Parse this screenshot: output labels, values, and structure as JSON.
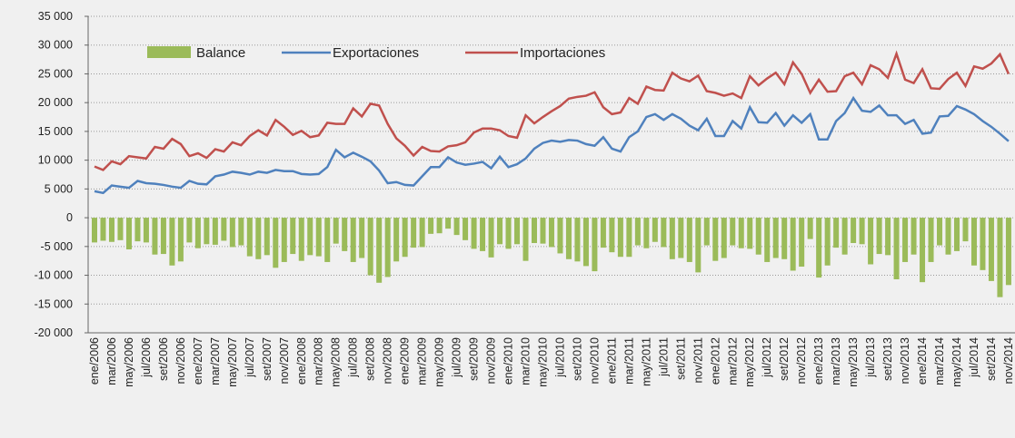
{
  "chart_data": {
    "type": "bar_line",
    "categories": [
      "ene/2006",
      null,
      "mar/2006",
      null,
      "may/2006",
      null,
      "jul/2006",
      null,
      "set/2006",
      null,
      "nov/2006",
      null,
      "ene/2007",
      null,
      "mar/2007",
      null,
      "may/2007",
      null,
      "jul/2007",
      null,
      "set/2007",
      null,
      "nov/2007",
      null,
      "ene/2008",
      null,
      "mar/2008",
      null,
      "may/2008",
      null,
      "jul/2008",
      null,
      "set/2008",
      null,
      "nov/2008",
      null,
      "ene/2009",
      null,
      "mar/2009",
      null,
      "may/2009",
      null,
      "jul/2009",
      null,
      "set/2009",
      null,
      "nov/2009",
      null,
      "ene/2010",
      null,
      "mar/2010",
      null,
      "may/2010",
      null,
      "jul/2010",
      null,
      "set/2010",
      null,
      "nov/2010",
      null,
      "ene/2011",
      null,
      "mar/2011",
      null,
      "may/2011",
      null,
      "jul/2011",
      null,
      "set/2011",
      null,
      "nov/2011",
      null,
      "ene/2012",
      null,
      "mar/2012",
      null,
      "may/2012",
      null,
      "jul/2012",
      null,
      "set/2012",
      null,
      "nov/2012",
      null,
      "ene/2013",
      null,
      "mar/2013",
      null,
      "may/2013",
      null,
      "jul/2013",
      null,
      "set/2013",
      null,
      "nov/2013",
      null,
      "ene/2014",
      null,
      "mar/2014",
      null,
      "may/2014",
      null,
      "jul/2014",
      null,
      "set/2014",
      null,
      "nov/2014"
    ],
    "series": [
      {
        "name": "Balance",
        "kind": "bar",
        "color": "#9bbb59",
        "values": [
          -4300,
          -4000,
          -4200,
          -3900,
          -5500,
          -4100,
          -4300,
          -6400,
          -6300,
          -8300,
          -7600,
          -4300,
          -5300,
          -4600,
          -4700,
          -4000,
          -5100,
          -4800,
          -6700,
          -7200,
          -6500,
          -8700,
          -7700,
          -6300,
          -7500,
          -6500,
          -6700,
          -7700,
          -4500,
          -5800,
          -7700,
          -7000,
          -10000,
          -11300,
          -10300,
          -7600,
          -6800,
          -5200,
          -5100,
          -2800,
          -2700,
          -1900,
          -3000,
          -3900,
          -5400,
          -5800,
          -6900,
          -4600,
          -5400,
          -4600,
          -7500,
          -4400,
          -4500,
          -5100,
          -6200,
          -7200,
          -7600,
          -8400,
          -9300,
          -5200,
          -6000,
          -6800,
          -6800,
          -4800,
          -5300,
          -4200,
          -5100,
          -7200,
          -7000,
          -7700,
          -9500,
          -4800,
          -7500,
          -7000,
          -4800,
          -5300,
          -5400,
          -6400,
          -7700,
          -7000,
          -7200,
          -9200,
          -8500,
          -3700,
          -10400,
          -8300,
          -5200,
          -6400,
          -4400,
          -4600,
          -8100,
          -6300,
          -6500,
          -10700,
          -7700,
          -6400,
          -11200,
          -7700,
          -4800,
          -6400,
          -5800,
          -4100,
          -8300,
          -9100,
          -11000,
          -13800,
          -11700
        ]
      },
      {
        "name": "Exportaciones",
        "kind": "line",
        "color": "#4f81bd",
        "values": [
          4600,
          4300,
          5600,
          5400,
          5200,
          6400,
          6000,
          5900,
          5700,
          5400,
          5200,
          6400,
          5900,
          5800,
          7200,
          7500,
          8000,
          7800,
          7500,
          8000,
          7800,
          8300,
          8100,
          8100,
          7600,
          7500,
          7600,
          8800,
          11800,
          10500,
          11300,
          10600,
          9800,
          8200,
          6000,
          6200,
          5700,
          5600,
          7200,
          8800,
          8800,
          10500,
          9600,
          9200,
          9400,
          9700,
          8600,
          10600,
          8800,
          9300,
          10300,
          12000,
          13000,
          13400,
          13200,
          13500,
          13400,
          12800,
          12500,
          14000,
          12000,
          11500,
          14000,
          15000,
          17500,
          18000,
          17000,
          18000,
          17200,
          16000,
          15200,
          17200,
          14200,
          14200,
          16800,
          15500,
          19200,
          16600,
          16500,
          18200,
          16000,
          17800,
          16500,
          18000,
          13600,
          13600,
          16800,
          18200,
          20800,
          18600,
          18400,
          19500,
          17800,
          17800,
          16300,
          17000,
          14600,
          14800,
          17600,
          17700,
          19400,
          18800,
          18000,
          16800,
          15800,
          14600,
          13300
        ]
      },
      {
        "name": "Importaciones",
        "kind": "line",
        "color": "#c0504d",
        "values": [
          8900,
          8300,
          9800,
          9300,
          10700,
          10500,
          10300,
          12300,
          12000,
          13700,
          12800,
          10700,
          11200,
          10400,
          11900,
          11500,
          13100,
          12600,
          14200,
          15200,
          14300,
          17000,
          15800,
          14400,
          15100,
          14000,
          14300,
          16500,
          16300,
          16300,
          19000,
          17600,
          19800,
          19500,
          16300,
          13800,
          12500,
          10800,
          12300,
          11600,
          11500,
          12400,
          12600,
          13100,
          14800,
          15500,
          15500,
          15200,
          14200,
          13900,
          17800,
          16400,
          17500,
          18500,
          19400,
          20700,
          21000,
          21200,
          21800,
          19200,
          18000,
          18300,
          20800,
          19800,
          22800,
          22200,
          22100,
          25200,
          24200,
          23700,
          24700,
          22000,
          21700,
          21200,
          21600,
          20800,
          24600,
          23000,
          24200,
          25200,
          23200,
          27000,
          25000,
          21700,
          24000,
          21900,
          22000,
          24600,
          25200,
          23200,
          26500,
          25800,
          24300,
          28500,
          24000,
          23400,
          25800,
          22500,
          22400,
          24100,
          25200,
          22900,
          26300,
          25900,
          26800,
          28400,
          25000
        ]
      }
    ],
    "ylim": [
      -20000,
      35000
    ],
    "yticks": [
      {
        "value": -20000,
        "label": "-20 000"
      },
      {
        "value": -15000,
        "label": "-15 000"
      },
      {
        "value": -10000,
        "label": "-10 000"
      },
      {
        "value": -5000,
        "label": "-5 000"
      },
      0,
      {
        "value": 5000,
        "label": "5 000"
      },
      {
        "value": 10000,
        "label": "10 000"
      },
      {
        "value": 15000,
        "label": "15 000"
      },
      {
        "value": 20000,
        "label": "20 000"
      },
      {
        "value": 25000,
        "label": "25 000"
      },
      {
        "value": 30000,
        "label": "30 000"
      },
      {
        "value": 35000,
        "label": "35 000"
      }
    ],
    "grid": true,
    "legend": "top-left"
  }
}
